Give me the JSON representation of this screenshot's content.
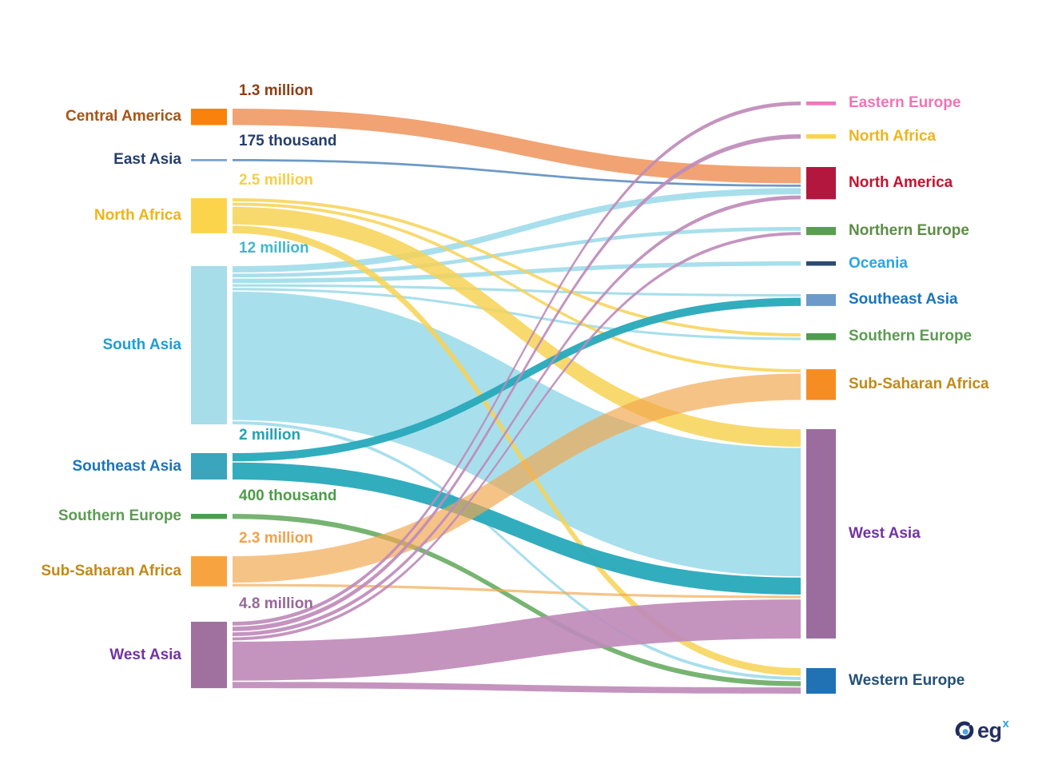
{
  "chart_data": {
    "type": "sankey",
    "title": "",
    "unit": "migrants",
    "left_nodes": [
      {
        "id": "central-america",
        "label": "Central America",
        "value_label": "1.3 million",
        "value_millions": 1.3,
        "node_color": "#F8820B",
        "flow_color": "#F09E6B",
        "flow_opacity": 0.95,
        "label_color": "#A85414",
        "value_label_color": "#8F3D13"
      },
      {
        "id": "east-asia",
        "label": "East Asia",
        "value_label": "175 thousand",
        "value_millions": 0.175,
        "node_color": "#7DA4CE",
        "flow_color": "#6593C3",
        "flow_opacity": 0.95,
        "label_color": "#243E6B",
        "value_label_color": "#243E6B"
      },
      {
        "id": "north-africa",
        "label": "North Africa",
        "value_label": "2.5 million",
        "value_millions": 2.5,
        "node_color": "#FBD44C",
        "flow_color": "#F7D255",
        "flow_opacity": 0.85,
        "label_color": "#EDB51B",
        "value_label_color": "#F7CE46"
      },
      {
        "id": "south-asia",
        "label": "South Asia",
        "value_label": "12 million",
        "value_millions": 12,
        "node_color": "#A7DCE9",
        "flow_color": "#A3DDEB",
        "flow_opacity": 0.95,
        "label_color": "#209CD8",
        "value_label_color": "#3FB9CB"
      },
      {
        "id": "southeast-asia",
        "label": "Southeast Asia",
        "value_label": "2 million",
        "value_millions": 2,
        "node_color": "#3AA5BD",
        "flow_color": "#27A9BB",
        "flow_opacity": 0.95,
        "label_color": "#1B74BB",
        "value_label_color": "#21A2B3"
      },
      {
        "id": "southern-europe",
        "label": "Southern Europe",
        "value_label": "400 thousand",
        "value_millions": 0.4,
        "node_color": "#4E9D4E",
        "flow_color": "#68AC63",
        "flow_opacity": 0.9,
        "label_color": "#5C9C52",
        "value_label_color": "#4C9C49"
      },
      {
        "id": "sub-saharan-africa",
        "label": "Sub-Saharan Africa",
        "value_label": "2.3 million",
        "value_millions": 2.3,
        "node_color": "#F7A440",
        "flow_color": "#F2A64E",
        "flow_opacity": 0.68,
        "label_color": "#C08A1A",
        "value_label_color": "#F2A24A"
      },
      {
        "id": "west-asia",
        "label": "West Asia",
        "value_label": "4.8 million",
        "value_millions": 4.8,
        "node_color": "#A0709F",
        "flow_color": "#BF8BBA",
        "flow_opacity": 0.92,
        "label_color": "#7233A2",
        "value_label_color": "#96689A"
      }
    ],
    "right_nodes": [
      {
        "id": "eastern-europe",
        "label": "Eastern Europe",
        "node_color": "#EC7ABA",
        "label_color": "#F173B5"
      },
      {
        "id": "north-africa-dest",
        "label": "North Africa",
        "node_color": "#FBD44C",
        "label_color": "#EDB51B"
      },
      {
        "id": "north-america",
        "label": "North America",
        "node_color": "#B3173E",
        "label_color": "#C41230"
      },
      {
        "id": "northern-europe",
        "label": "Northern Europe",
        "node_color": "#5A9E4F",
        "label_color": "#5D8D45"
      },
      {
        "id": "oceania",
        "label": "Oceania",
        "node_color": "#2B4B71",
        "label_color": "#2BA4E4"
      },
      {
        "id": "southeast-asia-dest",
        "label": "Southeast Asia",
        "node_color": "#6C9BC9",
        "label_color": "#1B74BB"
      },
      {
        "id": "southern-europe-dest",
        "label": "Southern Europe",
        "node_color": "#4E9D4E",
        "label_color": "#5C9C52"
      },
      {
        "id": "sub-saharan-africa-dest",
        "label": "Sub-Saharan Africa",
        "node_color": "#F68D22",
        "label_color": "#C08A1A"
      },
      {
        "id": "west-asia-dest",
        "label": "West Asia",
        "node_color": "#9B6C9E",
        "label_color": "#7233A2"
      },
      {
        "id": "western-europe",
        "label": "Western Europe",
        "node_color": "#2072B5",
        "label_color": "#235077"
      }
    ],
    "links": [
      {
        "source": "central-america",
        "target": "north-america",
        "value_millions": 1.3
      },
      {
        "source": "east-asia",
        "target": "north-america",
        "value_millions": 0.175
      },
      {
        "source": "north-africa",
        "target": "southern-europe-dest",
        "value_millions": 0.25
      },
      {
        "source": "north-africa",
        "target": "sub-saharan-africa-dest",
        "value_millions": 0.25
      },
      {
        "source": "north-africa",
        "target": "west-asia-dest",
        "value_millions": 1.4
      },
      {
        "source": "north-africa",
        "target": "western-europe",
        "value_millions": 0.6
      },
      {
        "source": "south-asia",
        "target": "north-america",
        "value_millions": 0.5
      },
      {
        "source": "south-asia",
        "target": "northern-europe",
        "value_millions": 0.3
      },
      {
        "source": "south-asia",
        "target": "oceania",
        "value_millions": 0.35
      },
      {
        "source": "south-asia",
        "target": "southeast-asia-dest",
        "value_millions": 0.2
      },
      {
        "source": "south-asia",
        "target": "southern-europe-dest",
        "value_millions": 0.2
      },
      {
        "source": "south-asia",
        "target": "west-asia-dest",
        "value_millions": 10.2
      },
      {
        "source": "south-asia",
        "target": "western-europe",
        "value_millions": 0.25
      },
      {
        "source": "southeast-asia",
        "target": "southeast-asia-dest",
        "value_millions": 0.65
      },
      {
        "source": "southeast-asia",
        "target": "west-asia-dest",
        "value_millions": 1.35
      },
      {
        "source": "southern-europe",
        "target": "western-europe",
        "value_millions": 0.4
      },
      {
        "source": "sub-saharan-africa",
        "target": "sub-saharan-africa-dest",
        "value_millions": 2.1
      },
      {
        "source": "sub-saharan-africa",
        "target": "west-asia-dest",
        "value_millions": 0.2
      },
      {
        "source": "west-asia",
        "target": "eastern-europe",
        "value_millions": 0.3
      },
      {
        "source": "west-asia",
        "target": "north-africa-dest",
        "value_millions": 0.35
      },
      {
        "source": "west-asia",
        "target": "north-america",
        "value_millions": 0.3
      },
      {
        "source": "west-asia",
        "target": "northern-europe",
        "value_millions": 0.25
      },
      {
        "source": "west-asia",
        "target": "west-asia-dest",
        "value_millions": 3.1
      },
      {
        "source": "west-asia",
        "target": "western-europe",
        "value_millions": 0.5
      }
    ]
  },
  "branding": {
    "logo_text": "eg",
    "logo_sup": "x",
    "logo_dark_color": "#1F2C5E",
    "logo_accent_color": "#4EA5DE"
  }
}
